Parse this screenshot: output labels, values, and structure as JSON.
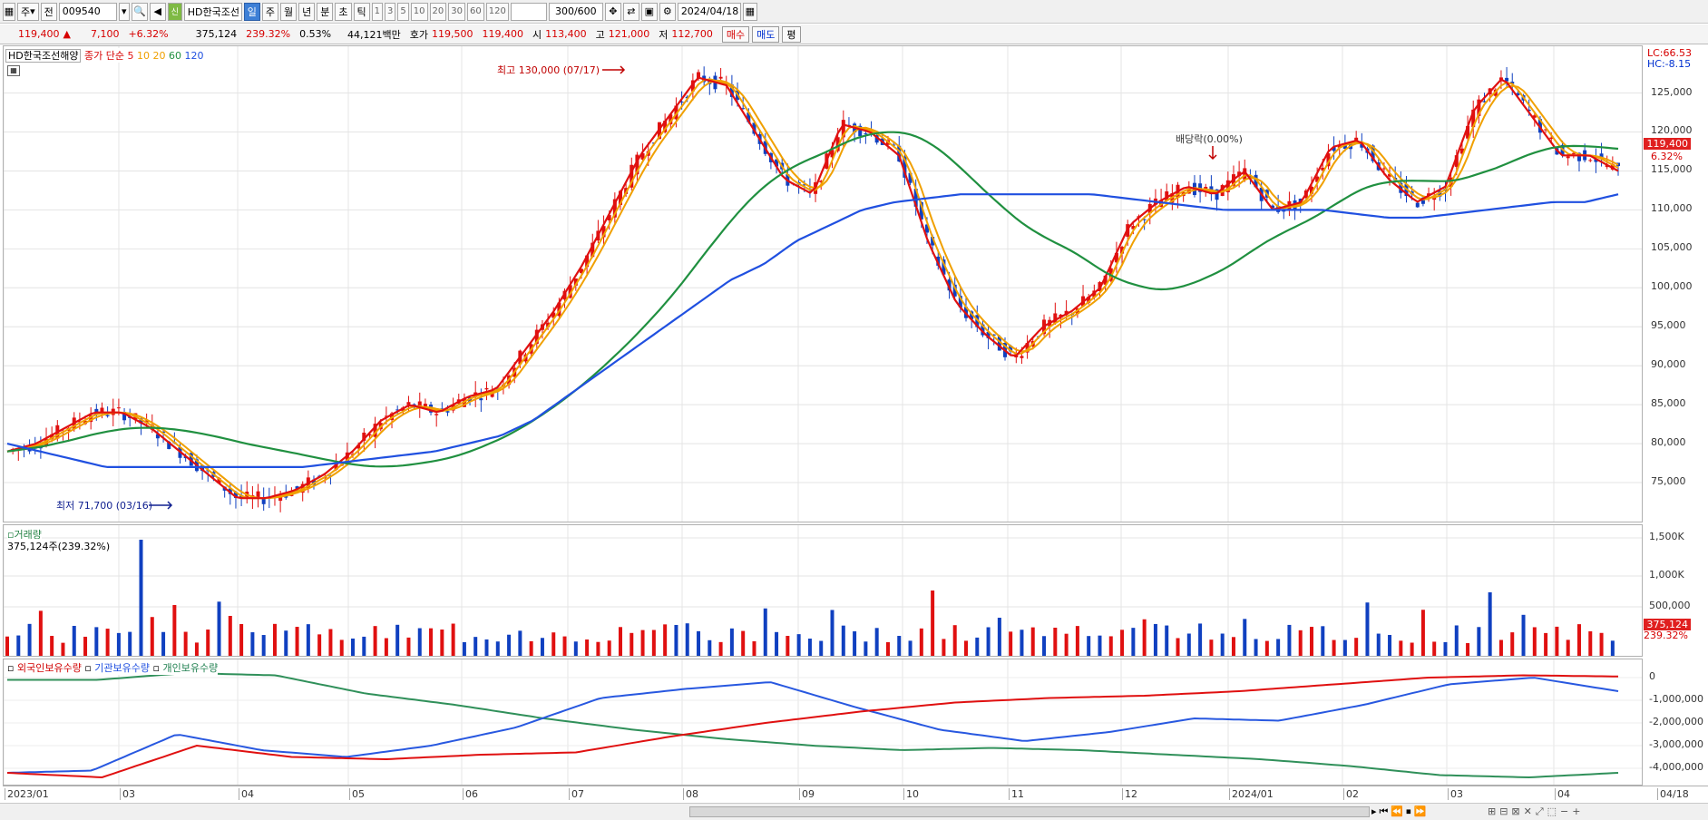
{
  "toolbar": {
    "unit": "주",
    "market": "전",
    "code": "009540",
    "name": "HD한국조선",
    "periods": [
      "일",
      "주",
      "월",
      "년",
      "분",
      "초",
      "틱"
    ],
    "active_period": "일",
    "minutes": [
      "1",
      "3",
      "5",
      "10",
      "20",
      "30",
      "60",
      "120"
    ],
    "count": "300/600",
    "date": "2024/04/18"
  },
  "quote": {
    "price": "119,400",
    "change": "7,100",
    "change_pct": "+6.32%",
    "volume": "375,124",
    "vol_ratio": "239.32%",
    "turnover": "0.53%",
    "amount": "44,121백만",
    "ask_label": "호가",
    "ask": "119,500",
    "bid": "119,400",
    "open_label": "시",
    "open": "113,400",
    "high_label": "고",
    "high": "121,000",
    "low_label": "저",
    "low": "112,700",
    "buy": "매수",
    "sell": "매도",
    "eval": "평"
  },
  "main_legend": {
    "name": "HD한국조선해양",
    "ma_label": "종가 단순",
    "ma": [
      "5",
      "10",
      "20",
      "60",
      "120"
    ]
  },
  "main_axis": {
    "lc": "LC:66.53",
    "hc": "HC:-8.15",
    "current": "119,400",
    "current_pct": "6.32%",
    "ticks": [
      "125,000",
      "120,000",
      "115,000",
      "110,000",
      "105,000",
      "100,000",
      "95,000",
      "90,000",
      "85,000",
      "80,000",
      "75,000"
    ]
  },
  "annotations": {
    "high": "최고 130,000 (07/17)",
    "low": "최저 71,700 (03/16)",
    "dividend": "배당락(0.00%)"
  },
  "volume": {
    "title": "거래량",
    "value": "375,124주(239.32%)",
    "ticks": [
      "1,500K",
      "1,000K",
      "500,000"
    ],
    "current": "375,124",
    "current_pct": "239.32%"
  },
  "holdings": {
    "labels": [
      "외국인보유수량",
      "기관보유수량",
      "개인보유수량"
    ],
    "ticks": [
      "0",
      "-1,000,000",
      "-2,000,000",
      "-3,000,000",
      "-4,000,000"
    ]
  },
  "xaxis": [
    "2023/01",
    "03",
    "04",
    "05",
    "06",
    "07",
    "08",
    "09",
    "10",
    "11",
    "12",
    "2024/01",
    "02",
    "03",
    "04",
    "04/18"
  ],
  "colors": {
    "ma5": "#e01010",
    "ma10": "#f0a000",
    "ma20": "#f0a000",
    "ma60": "#209040",
    "ma120": "#2050e0",
    "up": "#e01010",
    "down": "#1040c0"
  },
  "chart_data": {
    "type": "candlestick",
    "ylim": [
      70000,
      131000
    ],
    "series": [
      {
        "name": "5",
        "values": [
          79000,
          80000,
          82000,
          84000,
          84000,
          82000,
          79000,
          76000,
          73000,
          73000,
          74000,
          76000,
          79000,
          83000,
          85000,
          84000,
          86000,
          87000,
          92000,
          97000,
          103000,
          110000,
          117000,
          122000,
          127000,
          126000,
          120000,
          114000,
          112000,
          121000,
          120000,
          117000,
          106000,
          98000,
          94000,
          91000,
          95000,
          97000,
          100000,
          108000,
          111000,
          113000,
          112000,
          115000,
          110000,
          111000,
          118000,
          119000,
          114000,
          111000,
          113000,
          123000,
          127000,
          122000,
          117000,
          117000,
          115000
        ]
      },
      {
        "name": "120",
        "values": [
          80000,
          79000,
          78000,
          77000,
          77000,
          77000,
          77000,
          77000,
          77000,
          77000,
          77500,
          78000,
          78500,
          79000,
          80000,
          81000,
          83000,
          86000,
          89000,
          92000,
          95000,
          98000,
          101000,
          103000,
          106000,
          108000,
          110000,
          111000,
          111500,
          112000,
          112000,
          112000,
          112000,
          112000,
          111500,
          111000,
          110500,
          110000,
          110000,
          110000,
          110000,
          109500,
          109000,
          109000,
          109500,
          110000,
          110500,
          111000,
          111000,
          112000
        ]
      }
    ]
  }
}
